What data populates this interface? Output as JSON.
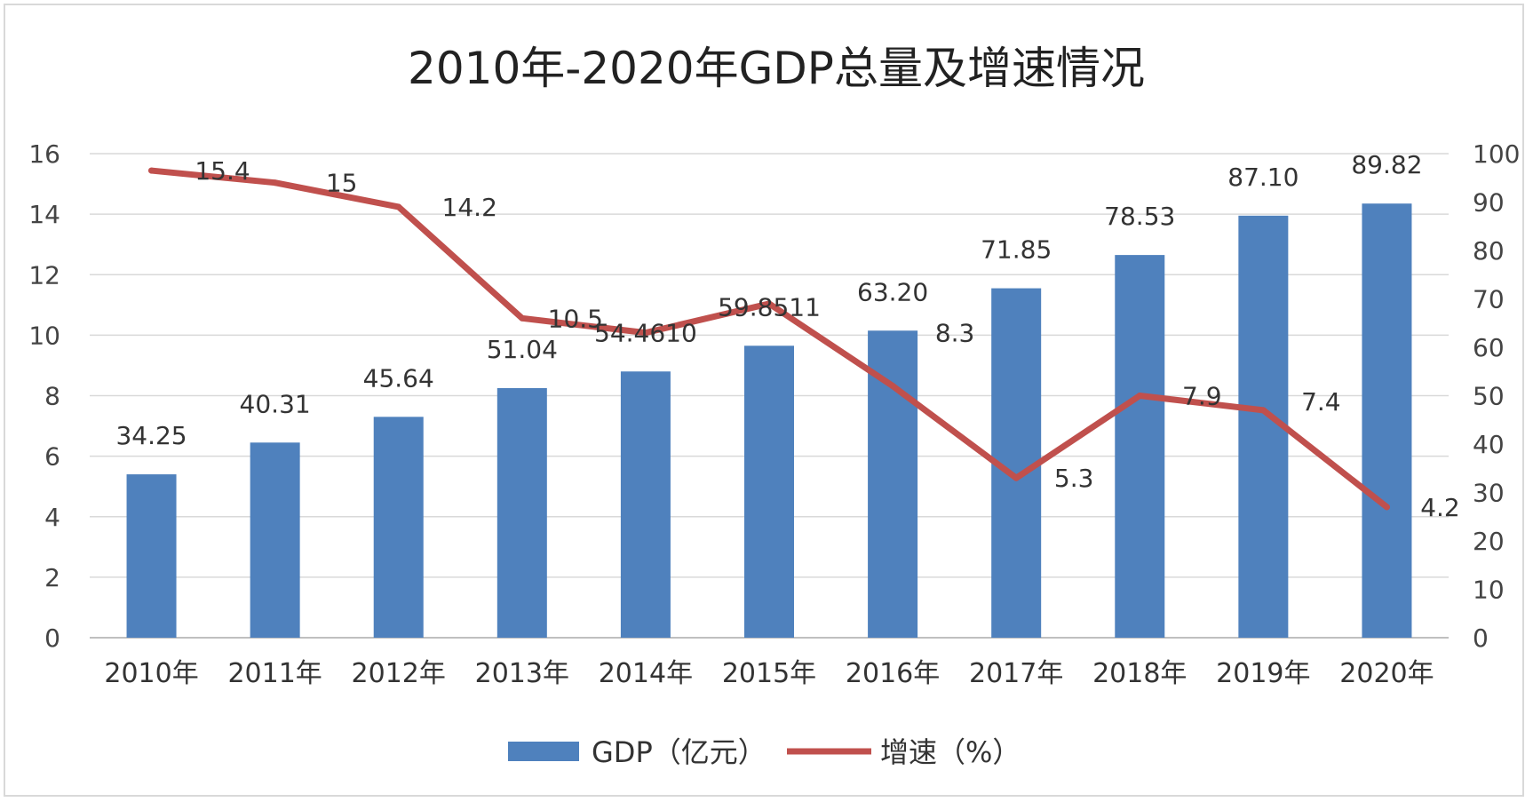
{
  "chart_data": {
    "type": "bar",
    "title": "2010年-2020年GDP总量及增速情况",
    "categories": [
      "2010年",
      "2011年",
      "2012年",
      "2013年",
      "2014年",
      "2015年",
      "2016年",
      "2017年",
      "2018年",
      "2019年",
      "2020年"
    ],
    "series": [
      {
        "name": "GDP（亿元）",
        "type": "bar",
        "axis": "left",
        "color": "#4f81bd",
        "values": [
          5.4,
          6.45,
          7.3,
          8.25,
          8.8,
          9.65,
          10.15,
          11.55,
          12.65,
          13.95,
          14.35
        ],
        "labels": [
          "34.25",
          "40.31",
          "45.64",
          "51.04",
          "54.4610",
          "59.8511",
          "63.20",
          "71.85",
          "78.53",
          "87.10",
          "89.82"
        ]
      },
      {
        "name": "增速（%）",
        "type": "line",
        "axis": "right",
        "color": "#c0504d",
        "values": [
          96.5,
          94,
          89,
          66,
          63,
          69,
          52,
          33,
          50,
          47,
          27
        ],
        "labels": [
          "15.4",
          "15",
          "14.2",
          "10.5",
          "",
          "",
          "8.3",
          "5.3",
          "7.9",
          "7.4",
          "4.2"
        ]
      }
    ],
    "y_left": {
      "min": 0,
      "max": 16,
      "step": 2,
      "ticks": [
        "0",
        "2",
        "4",
        "6",
        "8",
        "10",
        "12",
        "14",
        "16"
      ]
    },
    "y_right": {
      "min": 0,
      "max": 100,
      "step": 10,
      "ticks": [
        "0",
        "10",
        "20",
        "30",
        "40",
        "50",
        "60",
        "70",
        "80",
        "90",
        "100"
      ]
    },
    "grid": true,
    "legend": "bottom-center"
  }
}
